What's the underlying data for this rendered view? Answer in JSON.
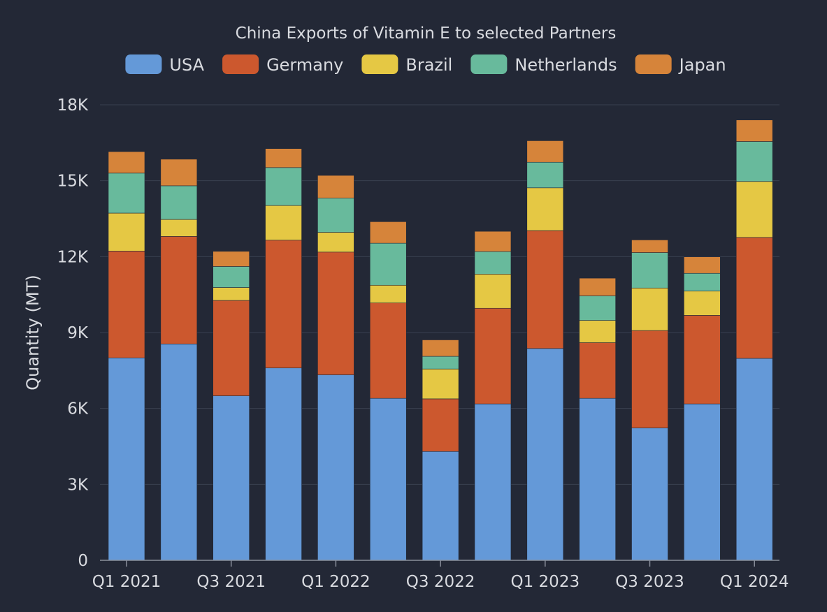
{
  "chart_data": {
    "type": "bar",
    "stacked": true,
    "title": "China Exports of Vitamin E to selected Partners",
    "ylabel": "Quantity (MT)",
    "xlabel": "",
    "ylim": [
      0,
      18000
    ],
    "yticks": [
      0,
      3000,
      6000,
      9000,
      12000,
      15000,
      18000
    ],
    "ytick_labels": [
      "0",
      "3K",
      "6K",
      "9K",
      "12K",
      "15K",
      "18K"
    ],
    "categories": [
      "Q1 2021",
      "Q2 2021",
      "Q3 2021",
      "Q4 2021",
      "Q1 2022",
      "Q2 2022",
      "Q3 2022",
      "Q4 2022",
      "Q1 2023",
      "Q2 2023",
      "Q3 2023",
      "Q4 2023",
      "Q1 2024"
    ],
    "xtick_labels": [
      {
        "index": 0,
        "label": "Q1 2021"
      },
      {
        "index": 2,
        "label": "Q3 2021"
      },
      {
        "index": 4,
        "label": "Q1 2022"
      },
      {
        "index": 6,
        "label": "Q3 2022"
      },
      {
        "index": 8,
        "label": "Q1 2023"
      },
      {
        "index": 10,
        "label": "Q3 2023"
      },
      {
        "index": 12,
        "label": "Q1 2024"
      }
    ],
    "legend_position": "top",
    "grid": true,
    "series": [
      {
        "name": "USA",
        "color": "#6499d8",
        "values": [
          8000,
          8550,
          6500,
          7600,
          7330,
          6400,
          4300,
          6180,
          8370,
          6400,
          5230,
          6180,
          7980
        ]
      },
      {
        "name": "Germany",
        "color": "#cc582e",
        "values": [
          4220,
          4250,
          3770,
          5050,
          4850,
          3770,
          2080,
          3780,
          4660,
          2200,
          3850,
          3500,
          4780
        ]
      },
      {
        "name": "Brazil",
        "color": "#e5c844",
        "values": [
          1500,
          670,
          510,
          1370,
          780,
          700,
          1180,
          1350,
          1690,
          880,
          1680,
          960,
          2210
        ]
      },
      {
        "name": "Netherlands",
        "color": "#68ba9c",
        "values": [
          1580,
          1330,
          830,
          1500,
          1350,
          1660,
          500,
          890,
          1010,
          970,
          1400,
          700,
          1580
        ]
      },
      {
        "name": "Japan",
        "color": "#d6843a",
        "values": [
          850,
          1050,
          600,
          750,
          900,
          850,
          650,
          800,
          850,
          700,
          500,
          650,
          850
        ]
      }
    ]
  }
}
